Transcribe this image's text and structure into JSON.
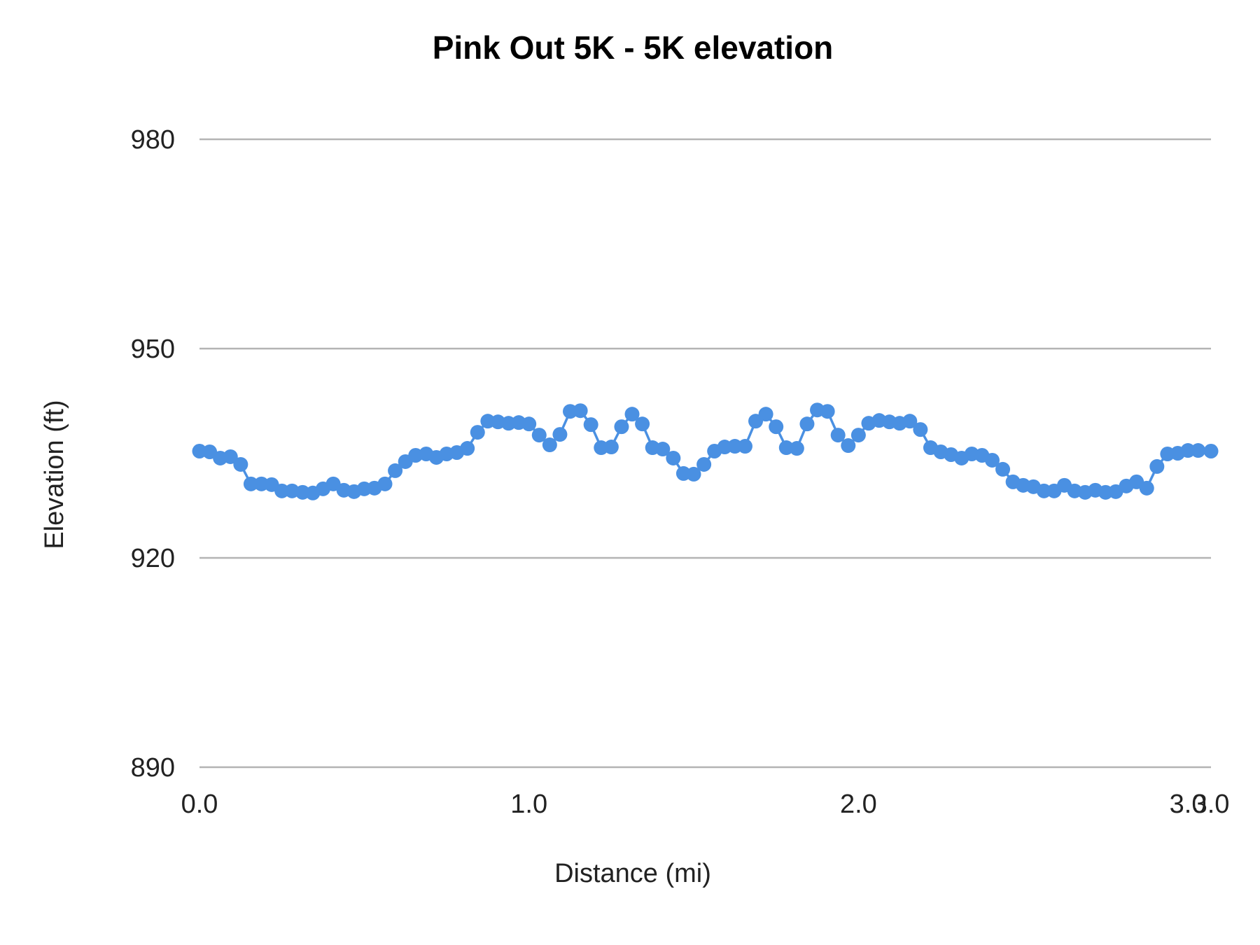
{
  "chart_data": {
    "type": "line",
    "title": "Pink Out 5K - 5K elevation",
    "xlabel": "Distance (mi)",
    "ylabel": "Elevation (ft)",
    "xlim": [
      0,
      3.07
    ],
    "ylim": [
      890,
      980
    ],
    "x_ticks": [
      "0.0",
      "1.0",
      "2.0",
      "3.0",
      "3.0"
    ],
    "x_tick_values": [
      0.0,
      1.0,
      2.0,
      3.0,
      3.07
    ],
    "y_ticks": [
      "890",
      "920",
      "950",
      "980"
    ],
    "y_tick_values": [
      890,
      920,
      950,
      980
    ],
    "grid": true,
    "legend": "none",
    "colors": {
      "series": "#4a90e2",
      "grid": "#b4b4b4"
    },
    "series": [
      {
        "x": [
          0.0,
          0.031,
          0.063,
          0.094,
          0.125,
          0.156,
          0.188,
          0.219,
          0.25,
          0.281,
          0.313,
          0.344,
          0.375,
          0.406,
          0.438,
          0.469,
          0.5,
          0.531,
          0.563,
          0.594,
          0.625,
          0.656,
          0.688,
          0.719,
          0.75,
          0.781,
          0.813,
          0.844,
          0.875,
          0.906,
          0.938,
          0.969,
          1.0,
          1.031,
          1.063,
          1.094,
          1.125,
          1.156,
          1.188,
          1.219,
          1.25,
          1.281,
          1.313,
          1.344,
          1.375,
          1.406,
          1.438,
          1.469,
          1.5,
          1.531,
          1.563,
          1.594,
          1.625,
          1.656,
          1.688,
          1.719,
          1.75,
          1.781,
          1.813,
          1.844,
          1.875,
          1.906,
          1.938,
          1.969,
          2.0,
          2.031,
          2.063,
          2.094,
          2.125,
          2.156,
          2.188,
          2.219,
          2.25,
          2.281,
          2.313,
          2.344,
          2.375,
          2.406,
          2.438,
          2.469,
          2.5,
          2.531,
          2.563,
          2.594,
          2.625,
          2.656,
          2.688,
          2.719,
          2.75,
          2.781,
          2.813,
          2.844,
          2.875,
          2.906,
          2.938,
          2.969,
          3.0,
          3.031,
          3.07
        ],
        "y": [
          935.3,
          935.2,
          934.3,
          934.5,
          933.4,
          930.6,
          930.6,
          930.5,
          929.6,
          929.6,
          929.4,
          929.3,
          929.9,
          930.6,
          929.7,
          929.5,
          929.9,
          930.0,
          930.6,
          932.5,
          933.8,
          934.7,
          934.9,
          934.4,
          934.9,
          935.1,
          935.7,
          938.0,
          939.6,
          939.5,
          939.3,
          939.4,
          939.2,
          937.6,
          936.2,
          937.7,
          941.0,
          941.1,
          939.1,
          935.8,
          935.9,
          938.8,
          940.6,
          939.2,
          935.8,
          935.6,
          934.3,
          932.1,
          932.0,
          933.4,
          935.3,
          935.9,
          936.0,
          936.0,
          939.6,
          940.6,
          938.8,
          935.8,
          935.7,
          939.2,
          941.2,
          941.0,
          937.6,
          936.1,
          937.6,
          939.3,
          939.7,
          939.5,
          939.3,
          939.6,
          938.4,
          935.8,
          935.2,
          934.8,
          934.3,
          934.9,
          934.7,
          934.0,
          932.7,
          930.9,
          930.4,
          930.2,
          929.6,
          929.6,
          930.4,
          929.6,
          929.4,
          929.7,
          929.4,
          929.5,
          930.3,
          930.9,
          930.0,
          933.1,
          934.9,
          935.0,
          935.4,
          935.4,
          935.3
        ]
      }
    ]
  }
}
